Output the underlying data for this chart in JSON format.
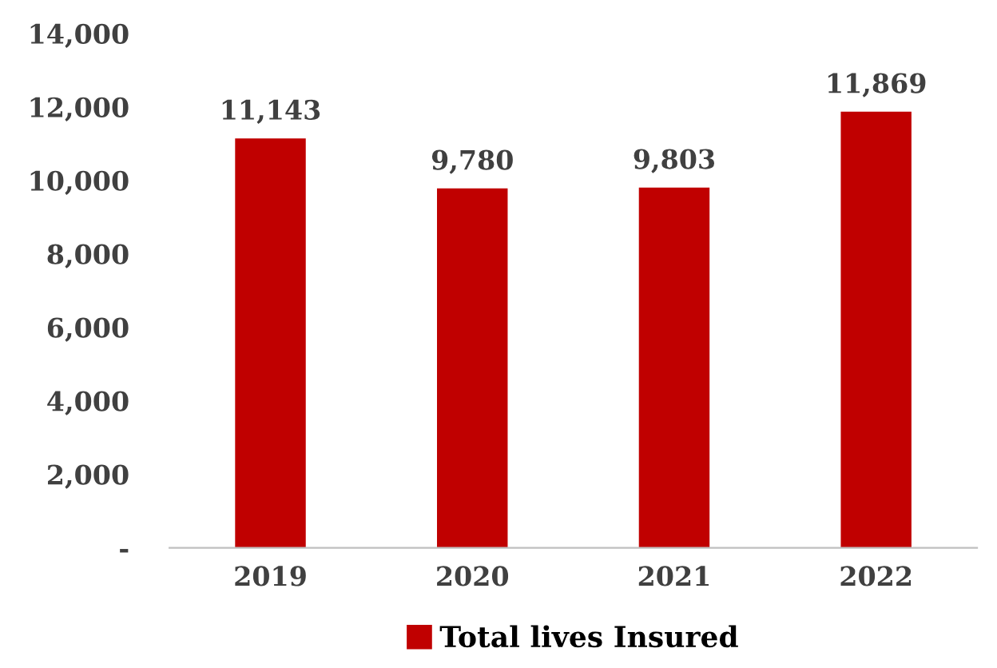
{
  "chart_data": {
    "type": "bar",
    "categories": [
      "2019",
      "2020",
      "2021",
      "2022"
    ],
    "series": [
      {
        "name": "Total lives Insured",
        "color": "#c00000",
        "values": [
          11143,
          9780,
          9803,
          11869
        ],
        "value_labels": [
          "11,143",
          "9,780",
          "9,803",
          "11,869"
        ]
      }
    ],
    "ylim": [
      0,
      14000
    ],
    "yticks": [
      {
        "value": 0,
        "label": "-"
      },
      {
        "value": 2000,
        "label": "2,000"
      },
      {
        "value": 4000,
        "label": "4,000"
      },
      {
        "value": 6000,
        "label": "6,000"
      },
      {
        "value": 8000,
        "label": "8,000"
      },
      {
        "value": 10000,
        "label": "10,000"
      },
      {
        "value": 12000,
        "label": "12,000"
      },
      {
        "value": 14000,
        "label": "14,000"
      }
    ],
    "grid": false,
    "legend": "bottom"
  }
}
